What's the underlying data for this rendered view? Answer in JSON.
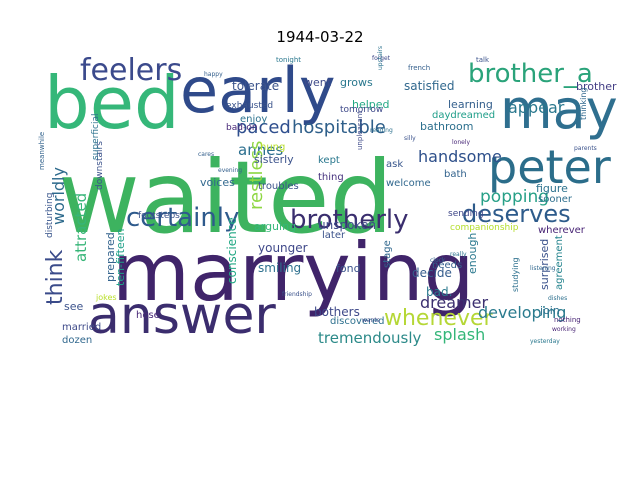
{
  "title": "1944-03-22",
  "words": [
    {
      "text": "waited",
      "color": "#3db35f"
    },
    {
      "text": "marrying",
      "color": "#40246a"
    },
    {
      "text": "bed",
      "color": "#35b779"
    },
    {
      "text": "early",
      "color": "#2f4a8a"
    },
    {
      "text": "may",
      "color": "#2f6f8f"
    },
    {
      "text": "answer",
      "color": "#3b2d6e"
    },
    {
      "text": "peter",
      "color": "#2b6d8a"
    },
    {
      "text": "feelers",
      "color": "#3b4a8c"
    },
    {
      "text": "brother_a",
      "color": "#2aa37a"
    },
    {
      "text": "certainly",
      "color": "#2e5a8c"
    },
    {
      "text": "brotherly",
      "color": "#3a2e6e"
    },
    {
      "text": "deserves",
      "color": "#2d5b8b"
    },
    {
      "text": "think",
      "color": "#3a4b8a"
    },
    {
      "text": "whenever",
      "color": "#b5d736"
    },
    {
      "text": "hospitable",
      "color": "#2f5f8a"
    },
    {
      "text": "handsome",
      "color": "#2d4f8a"
    },
    {
      "text": "appear",
      "color": "#2a788e"
    },
    {
      "text": "paced",
      "color": "#2f4f8e"
    },
    {
      "text": "annes",
      "color": "#2a6e8e"
    },
    {
      "text": "restless",
      "color": "#8fd744"
    },
    {
      "text": "popping",
      "color": "#27a087"
    },
    {
      "text": "worldly",
      "color": "#2d6a8c"
    },
    {
      "text": "attracted",
      "color": "#37b578"
    },
    {
      "text": "dreamer",
      "color": "#3b2f70"
    },
    {
      "text": "developing",
      "color": "#2a7b8e"
    },
    {
      "text": "tremendously",
      "color": "#2c8a89"
    },
    {
      "text": "splash",
      "color": "#34b679"
    },
    {
      "text": "satisfied",
      "color": "#31688e"
    },
    {
      "text": "tolerate",
      "color": "#3b548c"
    },
    {
      "text": "went",
      "color": "#3e4a89"
    },
    {
      "text": "grows",
      "color": "#2a788e"
    },
    {
      "text": "brother",
      "color": "#433e85"
    },
    {
      "text": "helped",
      "color": "#22a884"
    },
    {
      "text": "exhausted",
      "color": "#3a538b"
    },
    {
      "text": "bathroom",
      "color": "#2d708e"
    },
    {
      "text": "learning",
      "color": "#35608d"
    },
    {
      "text": "daydreamed",
      "color": "#1f9e89"
    },
    {
      "text": "enjoy",
      "color": "#2c728e"
    },
    {
      "text": "tomorrow",
      "color": "#3e4989"
    },
    {
      "text": "hung",
      "color": "#b8de29"
    },
    {
      "text": "kept",
      "color": "#2a788e"
    },
    {
      "text": "sisterly",
      "color": "#3b528b"
    },
    {
      "text": "thing",
      "color": "#46327e"
    },
    {
      "text": "bath",
      "color": "#33638d"
    },
    {
      "text": "welcome",
      "color": "#31688e"
    },
    {
      "text": "figure",
      "color": "#2c728e"
    },
    {
      "text": "sooner",
      "color": "#2e6f8e"
    },
    {
      "text": "ask",
      "color": "#39568c"
    },
    {
      "text": "voices",
      "color": "#31688e"
    },
    {
      "text": "troubles",
      "color": "#3b528b"
    },
    {
      "text": "sending",
      "color": "#3f4788"
    },
    {
      "text": "companionship",
      "color": "#b5de2b"
    },
    {
      "text": "wherever",
      "color": "#482475"
    },
    {
      "text": "arguing",
      "color": "#35b779"
    },
    {
      "text": "unspoken",
      "color": "#3e4a89"
    },
    {
      "text": "prepared",
      "color": "#33638d"
    },
    {
      "text": "ten-fifteen",
      "color": "#1fa088"
    },
    {
      "text": "later",
      "color": "#3b528b"
    },
    {
      "text": "conscience",
      "color": "#22a884"
    },
    {
      "text": "younger",
      "color": "#3f4889"
    },
    {
      "text": "smiling",
      "color": "#2d708e"
    },
    {
      "text": "fond",
      "color": "#3b528b"
    },
    {
      "text": "decide",
      "color": "#365d8d"
    },
    {
      "text": "enough",
      "color": "#2a788e"
    },
    {
      "text": "stage",
      "color": "#31688e"
    },
    {
      "text": "surprised",
      "color": "#3b528b"
    },
    {
      "text": "agreement",
      "color": "#25848e"
    },
    {
      "text": "join",
      "color": "#2c728e"
    },
    {
      "text": "bothers",
      "color": "#3e4989"
    },
    {
      "text": "discovered",
      "color": "#2d708e"
    },
    {
      "text": "jokes",
      "color": "#b8de29"
    },
    {
      "text": "see",
      "color": "#3b528b"
    },
    {
      "text": "married",
      "color": "#3e4a89"
    },
    {
      "text": "dozen",
      "color": "#31688e"
    },
    {
      "text": "hose",
      "color": "#482878"
    },
    {
      "text": "bad.",
      "color": "#2a788e"
    },
    {
      "text": "needs",
      "color": "#35608d"
    },
    {
      "text": "footsteps",
      "color": "#3b528b"
    },
    {
      "text": "disturbing",
      "color": "#39568c"
    },
    {
      "text": "downstairs",
      "color": "#3b528b"
    },
    {
      "text": "superficial",
      "color": "#2c728e"
    },
    {
      "text": "bad-on",
      "color": "#482878"
    },
    {
      "text": "meanwhile",
      "color": "#33638d"
    },
    {
      "text": "unpleasant",
      "color": "#3e4a89"
    },
    {
      "text": "studying",
      "color": "#2d708e"
    },
    {
      "text": "nothing",
      "color": "#482475"
    },
    {
      "text": "thinking",
      "color": "#31688e"
    },
    {
      "text": "talk",
      "color": "#3b528b"
    },
    {
      "text": "tonight",
      "color": "#2a788e"
    },
    {
      "text": "french",
      "color": "#35608d"
    },
    {
      "text": "forget",
      "color": "#3f4788"
    },
    {
      "text": "upstairs",
      "color": "#2c728e"
    },
    {
      "text": "silly",
      "color": "#3b528b"
    },
    {
      "text": "happy",
      "color": "#35608d"
    },
    {
      "text": "reading",
      "color": "#2d708e"
    },
    {
      "text": "lonely",
      "color": "#482878"
    },
    {
      "text": "clock",
      "color": "#31688e"
    },
    {
      "text": "friendship",
      "color": "#3b528b"
    },
    {
      "text": "yesterday",
      "color": "#2a788e"
    },
    {
      "text": "wants",
      "color": "#3e4a89"
    },
    {
      "text": "cares",
      "color": "#35608d"
    },
    {
      "text": "really",
      "color": "#2c728e"
    },
    {
      "text": "working",
      "color": "#482475"
    },
    {
      "text": "listening",
      "color": "#31688e"
    },
    {
      "text": "parents",
      "color": "#3b528b"
    },
    {
      "text": "dishes",
      "color": "#2d708e"
    },
    {
      "text": "evening",
      "color": "#35608d"
    }
  ]
}
